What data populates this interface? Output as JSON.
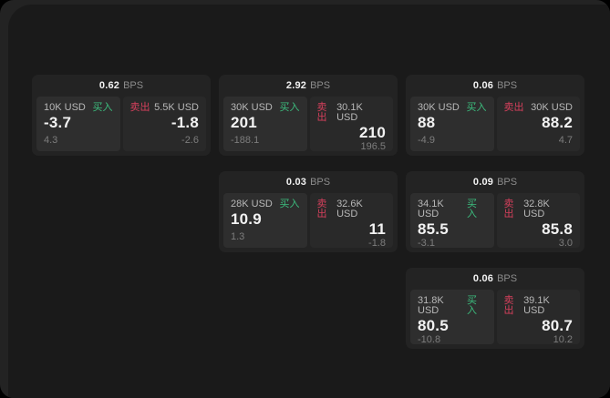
{
  "labels": {
    "bps_unit": "BPS",
    "buy": "买入",
    "sell": "卖出"
  },
  "colors": {
    "frame": "#232323",
    "window_bg": "#1a1a1a",
    "card_bg": "#232323",
    "panel_buy_bg": "#2e2e2e",
    "panel_sell_bg": "#292929",
    "buy": "#3cbd7e",
    "sell": "#d5405c",
    "value": "#f2f2f2",
    "label": "#b8b8b8",
    "muted": "#7d7d7d"
  },
  "cards": [
    {
      "col": 1,
      "row": 1,
      "bps": "0.62",
      "buy": {
        "amount": "10K USD",
        "value": "-3.7",
        "delta": "4.3"
      },
      "sell": {
        "amount": "5.5K USD",
        "value": "-1.8",
        "delta": "-2.6"
      }
    },
    {
      "col": 2,
      "row": 1,
      "bps": "2.92",
      "buy": {
        "amount": "30K USD",
        "value": "201",
        "delta": "-188.1"
      },
      "sell": {
        "amount": "30.1K USD",
        "value": "210",
        "delta": "196.5"
      }
    },
    {
      "col": 3,
      "row": 1,
      "bps": "0.06",
      "buy": {
        "amount": "30K USD",
        "value": "88",
        "delta": "-4.9"
      },
      "sell": {
        "amount": "30K USD",
        "value": "88.2",
        "delta": "4.7"
      }
    },
    {
      "col": 2,
      "row": 2,
      "bps": "0.03",
      "buy": {
        "amount": "28K USD",
        "value": "10.9",
        "delta": "1.3"
      },
      "sell": {
        "amount": "32.6K USD",
        "value": "11",
        "delta": "-1.8"
      }
    },
    {
      "col": 3,
      "row": 2,
      "bps": "0.09",
      "buy": {
        "amount": "34.1K USD",
        "value": "85.5",
        "delta": "-3.1"
      },
      "sell": {
        "amount": "32.8K USD",
        "value": "85.8",
        "delta": "3.0"
      }
    },
    {
      "col": 3,
      "row": 3,
      "bps": "0.06",
      "buy": {
        "amount": "31.8K USD",
        "value": "80.5",
        "delta": "-10.8"
      },
      "sell": {
        "amount": "39.1K USD",
        "value": "80.7",
        "delta": "10.2"
      }
    }
  ]
}
